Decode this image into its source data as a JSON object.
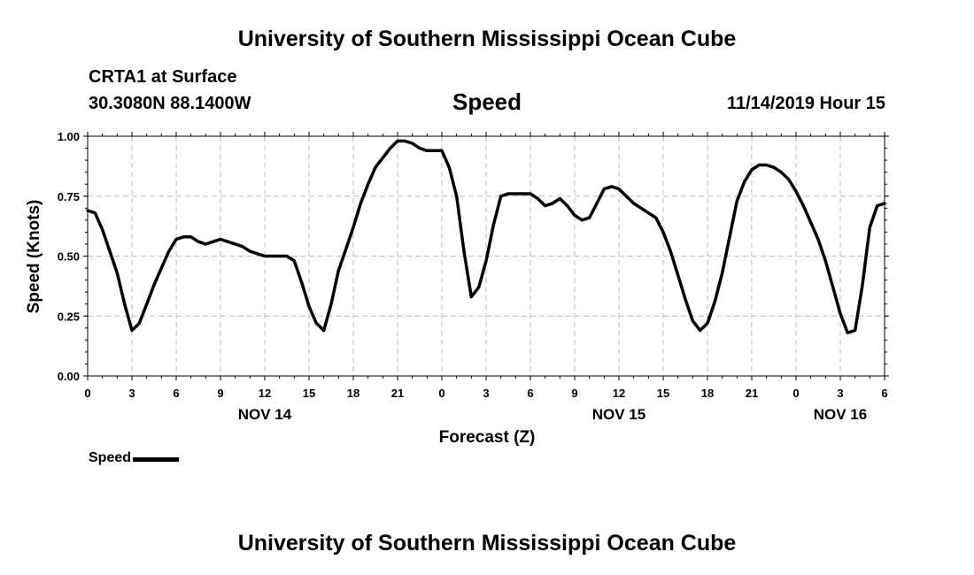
{
  "header": {
    "title": "University of Southern Mississippi Ocean Cube",
    "station": "CRTA1 at Surface",
    "coords": "30.3080N 88.1400W",
    "timestamp": "11/14/2019 Hour 15"
  },
  "footer": {
    "title": "University of Southern Mississippi Ocean Cube"
  },
  "chart_data": {
    "type": "line",
    "title": "Speed",
    "xlabel": "Forecast (Z)",
    "ylabel": "Speed (Knots)",
    "xlim": [
      0,
      54
    ],
    "ylim": [
      0,
      1
    ],
    "y_ticks": [
      0,
      0.25,
      0.5,
      0.75,
      1
    ],
    "y_tick_labels": [
      "0.00",
      "0.25",
      "0.50",
      "0.75",
      "1.00"
    ],
    "x_ticks": [
      0,
      3,
      6,
      9,
      12,
      15,
      18,
      21,
      24,
      27,
      30,
      33,
      36,
      39,
      42,
      45,
      48,
      51,
      54
    ],
    "x_tick_labels": [
      "0",
      "3",
      "6",
      "9",
      "12",
      "15",
      "18",
      "21",
      "0",
      "3",
      "6",
      "9",
      "12",
      "15",
      "18",
      "21",
      "0",
      "3",
      "6"
    ],
    "x_unit": "hours from 00Z Nov 14",
    "date_labels": [
      {
        "x": 12,
        "label": "NOV 14"
      },
      {
        "x": 36,
        "label": "NOV 15"
      },
      {
        "x": 51,
        "label": "NOV 16"
      }
    ],
    "grid": true,
    "legend": {
      "position": "bottom-left",
      "entries": [
        "Speed"
      ]
    },
    "series": [
      {
        "name": "Speed",
        "color": "#000000",
        "x": [
          0,
          0.5,
          1,
          1.5,
          2,
          2.5,
          3,
          3.5,
          4,
          4.5,
          5,
          5.5,
          6,
          6.5,
          7,
          7.5,
          8,
          8.5,
          9,
          9.5,
          10,
          10.5,
          11,
          11.5,
          12,
          12.5,
          13,
          13.5,
          14,
          14.5,
          15,
          15.5,
          16,
          16.5,
          17,
          17.5,
          18,
          18.5,
          19,
          19.5,
          20,
          20.5,
          21,
          21.5,
          22,
          22.5,
          23,
          23.5,
          24,
          24.5,
          25,
          25.5,
          26,
          26.5,
          27,
          27.5,
          28,
          28.5,
          29,
          29.5,
          30,
          30.5,
          31,
          31.5,
          32,
          32.5,
          33,
          33.5,
          34,
          34.5,
          35,
          35.5,
          36,
          36.5,
          37,
          37.5,
          38,
          38.5,
          39,
          39.5,
          40,
          40.5,
          41,
          41.5,
          42,
          42.5,
          43,
          43.5,
          44,
          44.5,
          45,
          45.5,
          46,
          46.5,
          47,
          47.5,
          48,
          48.5,
          49,
          49.5,
          50,
          50.5,
          51,
          51.5,
          52,
          52.5,
          53,
          53.5,
          54
        ],
        "values": [
          0.69,
          0.68,
          0.61,
          0.52,
          0.43,
          0.3,
          0.19,
          0.22,
          0.3,
          0.38,
          0.45,
          0.52,
          0.57,
          0.58,
          0.58,
          0.56,
          0.55,
          0.56,
          0.57,
          0.56,
          0.55,
          0.54,
          0.52,
          0.51,
          0.5,
          0.5,
          0.5,
          0.5,
          0.48,
          0.39,
          0.29,
          0.22,
          0.19,
          0.3,
          0.44,
          0.53,
          0.62,
          0.72,
          0.8,
          0.87,
          0.91,
          0.95,
          0.98,
          0.98,
          0.97,
          0.95,
          0.94,
          0.94,
          0.94,
          0.87,
          0.75,
          0.52,
          0.33,
          0.37,
          0.48,
          0.63,
          0.75,
          0.76,
          0.76,
          0.76,
          0.76,
          0.74,
          0.71,
          0.72,
          0.74,
          0.71,
          0.67,
          0.65,
          0.66,
          0.72,
          0.78,
          0.79,
          0.78,
          0.75,
          0.72,
          0.7,
          0.68,
          0.66,
          0.6,
          0.52,
          0.42,
          0.32,
          0.23,
          0.19,
          0.22,
          0.31,
          0.43,
          0.58,
          0.73,
          0.81,
          0.86,
          0.88,
          0.88,
          0.87,
          0.85,
          0.82,
          0.77,
          0.71,
          0.64,
          0.57,
          0.48,
          0.37,
          0.26,
          0.18,
          0.19,
          0.38,
          0.62,
          0.71,
          0.72
        ]
      }
    ]
  }
}
